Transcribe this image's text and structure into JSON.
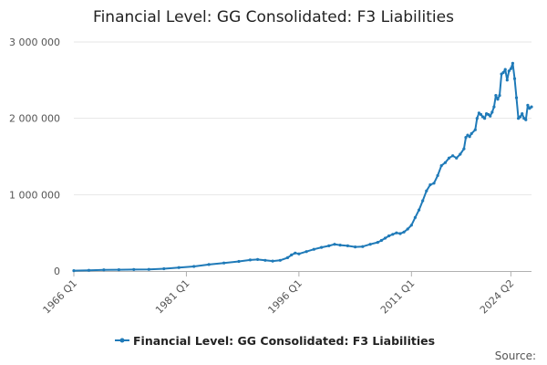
{
  "chart_data": {
    "type": "line",
    "title": "Financial Level: GG Consolidated: F3 Liabilities",
    "xlabel": "",
    "ylabel": "",
    "x_range": [
      1966.0,
      2024.25
    ],
    "ylim": [
      0,
      3000000
    ],
    "y_ticks": [
      0,
      1000000,
      2000000,
      3000000
    ],
    "y_tick_labels": [
      "0",
      "1 000 000",
      "2 000 000",
      "3 000 000"
    ],
    "x_ticks": [
      1966.0,
      1981.0,
      1996.0,
      2011.0,
      2024.25
    ],
    "x_tick_labels": [
      "1966 Q1",
      "1981 Q1",
      "1996 Q1",
      "2011 Q1",
      "2024 Q2"
    ],
    "grid": "horizontal",
    "legend_position": "bottom",
    "color": "#1f7ab8",
    "series": [
      {
        "name": "Financial Level: GG Consolidated: F3 Liabilities",
        "points": [
          [
            1966.0,
            5000
          ],
          [
            1968.0,
            10000
          ],
          [
            1970.0,
            15000
          ],
          [
            1972.0,
            17000
          ],
          [
            1974.0,
            19000
          ],
          [
            1976.0,
            22000
          ],
          [
            1978.0,
            30000
          ],
          [
            1980.0,
            45000
          ],
          [
            1982.0,
            60000
          ],
          [
            1984.0,
            85000
          ],
          [
            1986.0,
            105000
          ],
          [
            1988.0,
            125000
          ],
          [
            1989.5,
            145000
          ],
          [
            1990.5,
            150000
          ],
          [
            1991.5,
            140000
          ],
          [
            1992.5,
            130000
          ],
          [
            1993.5,
            140000
          ],
          [
            1994.5,
            175000
          ],
          [
            1995.0,
            210000
          ],
          [
            1995.5,
            235000
          ],
          [
            1996.0,
            225000
          ],
          [
            1997.0,
            255000
          ],
          [
            1998.0,
            285000
          ],
          [
            1999.0,
            310000
          ],
          [
            2000.0,
            330000
          ],
          [
            2000.75,
            350000
          ],
          [
            2001.5,
            340000
          ],
          [
            2002.5,
            330000
          ],
          [
            2003.5,
            315000
          ],
          [
            2004.5,
            320000
          ],
          [
            2005.5,
            350000
          ],
          [
            2006.5,
            375000
          ],
          [
            2007.0,
            400000
          ],
          [
            2007.5,
            430000
          ],
          [
            2008.0,
            460000
          ],
          [
            2008.5,
            480000
          ],
          [
            2009.0,
            500000
          ],
          [
            2009.5,
            490000
          ],
          [
            2010.0,
            510000
          ],
          [
            2010.5,
            550000
          ],
          [
            2011.0,
            600000
          ],
          [
            2011.5,
            700000
          ],
          [
            2012.0,
            800000
          ],
          [
            2012.5,
            920000
          ],
          [
            2013.0,
            1050000
          ],
          [
            2013.5,
            1130000
          ],
          [
            2014.0,
            1150000
          ],
          [
            2014.5,
            1250000
          ],
          [
            2015.0,
            1380000
          ],
          [
            2015.5,
            1420000
          ],
          [
            2016.0,
            1480000
          ],
          [
            2016.5,
            1510000
          ],
          [
            2017.0,
            1480000
          ],
          [
            2017.5,
            1530000
          ],
          [
            2018.0,
            1600000
          ],
          [
            2018.25,
            1750000
          ],
          [
            2018.5,
            1780000
          ],
          [
            2018.75,
            1760000
          ],
          [
            2019.0,
            1800000
          ],
          [
            2019.5,
            1850000
          ],
          [
            2019.75,
            2000000
          ],
          [
            2020.0,
            2070000
          ],
          [
            2020.25,
            2050000
          ],
          [
            2020.5,
            2020000
          ],
          [
            2020.75,
            2000000
          ],
          [
            2021.0,
            2060000
          ],
          [
            2021.25,
            2050000
          ],
          [
            2021.5,
            2030000
          ],
          [
            2021.75,
            2080000
          ],
          [
            2022.0,
            2150000
          ],
          [
            2022.25,
            2300000
          ],
          [
            2022.5,
            2250000
          ],
          [
            2022.75,
            2300000
          ],
          [
            2023.0,
            2580000
          ],
          [
            2023.25,
            2600000
          ],
          [
            2023.5,
            2640000
          ],
          [
            2023.75,
            2500000
          ],
          [
            2024.0,
            2620000
          ],
          [
            2024.25,
            2650000
          ],
          [
            2024.5,
            2720000
          ],
          [
            2024.75,
            2520000
          ],
          [
            2025.0,
            2270000
          ],
          [
            2025.25,
            2000000
          ],
          [
            2025.5,
            2020000
          ],
          [
            2025.75,
            2060000
          ],
          [
            2026.0,
            2000000
          ],
          [
            2026.25,
            1980000
          ],
          [
            2026.5,
            2170000
          ],
          [
            2026.75,
            2130000
          ],
          [
            2027.0,
            2150000
          ]
        ]
      }
    ],
    "source_label": "Source:"
  }
}
